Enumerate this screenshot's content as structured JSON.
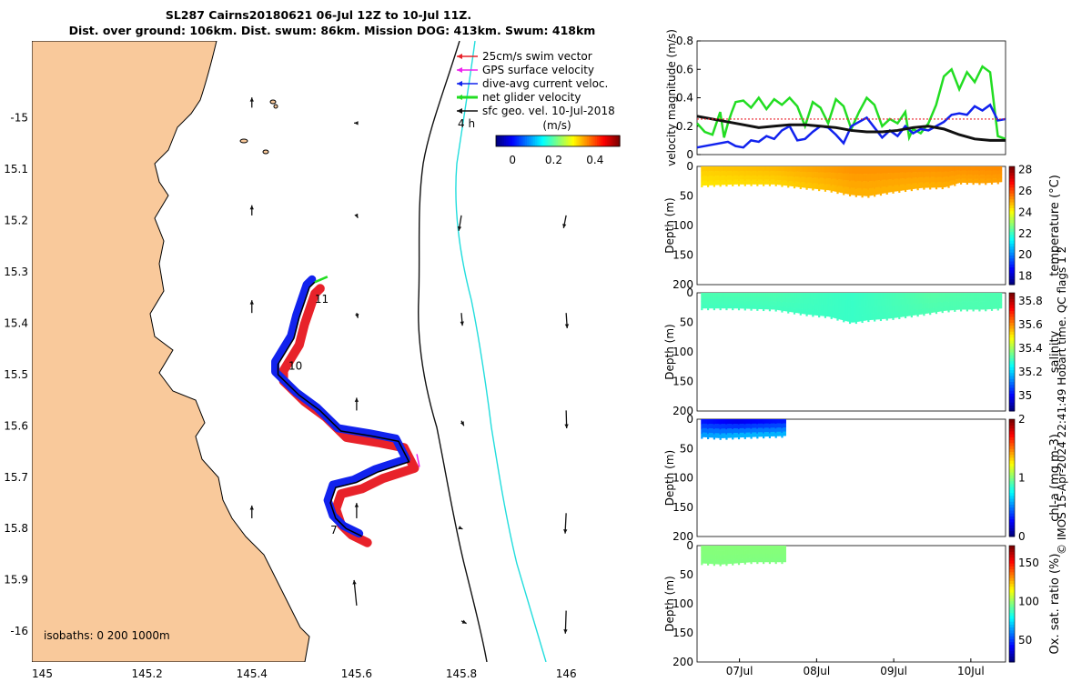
{
  "header": {
    "line1": "SL287 Cairns20180621 06-Jul 12Z to 10-Jul 11Z.",
    "line2": "Dist. over ground: 106km. Dist. swum: 86km. Mission DOG: 413km. Swum: 418km"
  },
  "credit": "© IMOS 15-Apr-2024 22:41:49 Hobart time. QC flags 1  2",
  "colors": {
    "land": "#f9c99b",
    "swim_vector": "#e8222a",
    "gps_velocity": "#ee22ee",
    "dive_current": "#1122ee",
    "net_velocity": "#22dd22",
    "sfc_geo": "#111111",
    "isobath_200": "#111111",
    "isobath_1000": "#22dddd"
  },
  "chart_data": [
    {
      "type": "map",
      "name": "glider-track-map",
      "xlabel_ticks": [
        "145",
        "145.2",
        "145.4",
        "145.6",
        "145.8",
        "146"
      ],
      "x_tick_values": [
        145,
        145.2,
        145.4,
        145.6,
        145.8,
        146
      ],
      "y_tick_labels": [
        "-15",
        "15.1",
        "15.2",
        "15.3",
        "15.4",
        "15.5",
        "15.6",
        "15.7",
        "15.8",
        "15.9",
        "-16"
      ],
      "y_tick_values": [
        -15,
        -15.1,
        -15.2,
        -15.3,
        -15.4,
        -15.5,
        -15.6,
        -15.7,
        -15.8,
        -15.9,
        -16
      ],
      "xlim": [
        144.98,
        146.17
      ],
      "ylim": [
        -16.06,
        -14.85
      ],
      "legend": [
        {
          "label": "25cm/s swim vector",
          "color_key": "swim_vector"
        },
        {
          "label": "GPS surface velocity",
          "color_key": "gps_velocity"
        },
        {
          "label": "dive-avg current veloc.",
          "color_key": "dive_current"
        },
        {
          "label": "net glider velocity",
          "color_key": "net_velocity"
        },
        {
          "label": "sfc geo. vel. 10-Jul-2018",
          "color_key": "sfc_geo"
        }
      ],
      "legend_note": "4 h",
      "colorbar": {
        "label": "(m/s)",
        "ticks": [
          "0",
          "0.2",
          "0.4"
        ],
        "tick_values": [
          0,
          0.2,
          0.4
        ],
        "range": [
          -0.08,
          0.52
        ]
      },
      "isobaths_label": "isobaths: 0   200  1000m",
      "day_labels": [
        {
          "text": "11",
          "lon": 145.52,
          "lat": -15.36
        },
        {
          "text": "10",
          "lon": 145.47,
          "lat": -15.49
        },
        {
          "text": "7",
          "lon": 145.55,
          "lat": -15.81
        }
      ],
      "track": [
        [
          145.61,
          -15.815
        ],
        [
          145.58,
          -15.8
        ],
        [
          145.56,
          -15.78
        ],
        [
          145.55,
          -15.75
        ],
        [
          145.56,
          -15.72
        ],
        [
          145.6,
          -15.71
        ],
        [
          145.64,
          -15.69
        ],
        [
          145.67,
          -15.68
        ],
        [
          145.7,
          -15.67
        ],
        [
          145.68,
          -15.63
        ],
        [
          145.63,
          -15.62
        ],
        [
          145.57,
          -15.61
        ],
        [
          145.53,
          -15.57
        ],
        [
          145.49,
          -15.54
        ],
        [
          145.45,
          -15.5
        ],
        [
          145.45,
          -15.48
        ],
        [
          145.48,
          -15.43
        ],
        [
          145.49,
          -15.39
        ],
        [
          145.5,
          -15.36
        ],
        [
          145.51,
          -15.33
        ],
        [
          145.52,
          -15.32
        ]
      ],
      "geo_vectors": [
        {
          "lon": 145.4,
          "lat": -14.98,
          "u": 0,
          "v": 0.04
        },
        {
          "lon": 145.6,
          "lat": -15.01,
          "u": -0.01,
          "v": 0
        },
        {
          "lon": 145.4,
          "lat": -15.19,
          "u": 0,
          "v": 0.04
        },
        {
          "lon": 145.6,
          "lat": -15.19,
          "u": 0.005,
          "v": -0.01
        },
        {
          "lon": 145.8,
          "lat": -15.19,
          "u": -0.01,
          "v": -0.06
        },
        {
          "lon": 146,
          "lat": -15.19,
          "u": -0.01,
          "v": -0.05
        },
        {
          "lon": 145.4,
          "lat": -15.38,
          "u": 0,
          "v": 0.05
        },
        {
          "lon": 145.6,
          "lat": -15.38,
          "u": 0.005,
          "v": -0.02
        },
        {
          "lon": 145.8,
          "lat": -15.38,
          "u": 0.004,
          "v": -0.05
        },
        {
          "lon": 146,
          "lat": -15.38,
          "u": 0.004,
          "v": -0.06
        },
        {
          "lon": 145.6,
          "lat": -15.57,
          "u": 0,
          "v": 0.05
        },
        {
          "lon": 145.8,
          "lat": -15.59,
          "u": 0.01,
          "v": -0.02
        },
        {
          "lon": 146,
          "lat": -15.57,
          "u": 0.002,
          "v": -0.07
        },
        {
          "lon": 145.4,
          "lat": -15.78,
          "u": 0,
          "v": 0.05
        },
        {
          "lon": 145.6,
          "lat": -15.78,
          "u": 0,
          "v": 0.06
        },
        {
          "lon": 145.8,
          "lat": -15.8,
          "u": 0.005,
          "v": -0.002
        },
        {
          "lon": 146,
          "lat": -15.77,
          "u": -0.004,
          "v": -0.08
        },
        {
          "lon": 145.6,
          "lat": -15.95,
          "u": -0.01,
          "v": 0.1
        },
        {
          "lon": 145.8,
          "lat": -15.98,
          "u": 0.02,
          "v": -0.01
        },
        {
          "lon": 146,
          "lat": -15.96,
          "u": -0.003,
          "v": -0.09
        }
      ]
    },
    {
      "type": "line",
      "name": "velocity-magnitude",
      "ylabel": "velocity magnitude (m/s)",
      "ylim": [
        0,
        0.8
      ],
      "yticks": [
        "0",
        "0.2",
        "0.4",
        "0.6",
        "0.8"
      ],
      "ytick_values": [
        0,
        0.2,
        0.4,
        0.6,
        0.8
      ],
      "xlim": [
        0,
        4
      ],
      "series": [
        {
          "name": "net glider velocity",
          "color_key": "net_velocity",
          "x": [
            0,
            0.1,
            0.2,
            0.3,
            0.35,
            0.4,
            0.45,
            0.5,
            0.6,
            0.7,
            0.8,
            0.9,
            1.0,
            1.1,
            1.2,
            1.3,
            1.4,
            1.5,
            1.6,
            1.7,
            1.8,
            1.9,
            2.0,
            2.1,
            2.2,
            2.3,
            2.4,
            2.5,
            2.6,
            2.7,
            2.75,
            2.8,
            2.9,
            3.0,
            3.1,
            3.2,
            3.3,
            3.4,
            3.5,
            3.6,
            3.7,
            3.8,
            3.9,
            4.0
          ],
          "y": [
            0.22,
            0.16,
            0.14,
            0.3,
            0.12,
            0.22,
            0.3,
            0.37,
            0.38,
            0.33,
            0.4,
            0.32,
            0.39,
            0.35,
            0.4,
            0.34,
            0.2,
            0.37,
            0.33,
            0.22,
            0.39,
            0.34,
            0.18,
            0.3,
            0.4,
            0.35,
            0.2,
            0.25,
            0.22,
            0.3,
            0.12,
            0.18,
            0.15,
            0.22,
            0.35,
            0.55,
            0.6,
            0.46,
            0.58,
            0.51,
            0.62,
            0.58,
            0.13,
            0.11
          ]
        },
        {
          "name": "dive-avg current veloc.",
          "color_key": "dive_current",
          "x": [
            0,
            0.2,
            0.4,
            0.5,
            0.6,
            0.7,
            0.8,
            0.9,
            1.0,
            1.1,
            1.2,
            1.3,
            1.4,
            1.5,
            1.6,
            1.7,
            1.8,
            1.9,
            2.0,
            2.1,
            2.2,
            2.3,
            2.4,
            2.5,
            2.6,
            2.7,
            2.8,
            2.9,
            3.0,
            3.1,
            3.2,
            3.3,
            3.4,
            3.5,
            3.6,
            3.7,
            3.8,
            3.9,
            4.0
          ],
          "y": [
            0.05,
            0.07,
            0.09,
            0.06,
            0.05,
            0.1,
            0.09,
            0.13,
            0.11,
            0.17,
            0.2,
            0.1,
            0.11,
            0.16,
            0.2,
            0.19,
            0.14,
            0.08,
            0.2,
            0.23,
            0.26,
            0.19,
            0.12,
            0.17,
            0.13,
            0.2,
            0.15,
            0.18,
            0.17,
            0.2,
            0.23,
            0.28,
            0.29,
            0.28,
            0.34,
            0.31,
            0.35,
            0.24,
            0.25
          ]
        },
        {
          "name": "sfc geo. vel.",
          "color_key": "sfc_geo",
          "x": [
            0,
            0.2,
            0.4,
            0.6,
            0.8,
            1.0,
            1.2,
            1.4,
            1.6,
            1.8,
            2.0,
            2.2,
            2.4,
            2.6,
            2.8,
            3.0,
            3.2,
            3.4,
            3.6,
            3.8,
            4.0
          ],
          "y": [
            0.27,
            0.25,
            0.23,
            0.21,
            0.19,
            0.2,
            0.21,
            0.21,
            0.2,
            0.19,
            0.17,
            0.16,
            0.16,
            0.17,
            0.19,
            0.2,
            0.18,
            0.14,
            0.11,
            0.1,
            0.1
          ]
        },
        {
          "name": "25cm/s swim vector",
          "color_key": "swim_vector",
          "x": [
            0,
            4.0
          ],
          "y": [
            0.25,
            0.25
          ]
        }
      ]
    },
    {
      "type": "heatmap",
      "name": "temperature-section",
      "clabel": "temperature (°C)",
      "clim": [
        17.2,
        28.3
      ],
      "cticks": [
        "18",
        "20",
        "22",
        "24",
        "26",
        "28"
      ],
      "ctick_values": [
        18,
        20,
        22,
        24,
        26,
        28
      ],
      "depth_range": [
        0,
        200
      ],
      "yticks": [
        "0",
        "50",
        "100",
        "150",
        "200"
      ],
      "ylabel": "Depth (m)",
      "time_range": [
        0.05,
        3.95
      ],
      "bottom_depth": [
        [
          0.05,
          32
        ],
        [
          0.5,
          30
        ],
        [
          1,
          30
        ],
        [
          1.4,
          36
        ],
        [
          1.7,
          40
        ],
        [
          2.0,
          48
        ],
        [
          2.2,
          50
        ],
        [
          2.5,
          43
        ],
        [
          2.9,
          36
        ],
        [
          3.2,
          35
        ],
        [
          3.4,
          27
        ],
        [
          3.7,
          28
        ],
        [
          3.95,
          26
        ]
      ],
      "surface_value": [
        [
          0,
          24.7
        ],
        [
          1,
          24.9
        ],
        [
          2,
          25.3
        ],
        [
          3,
          25.3
        ],
        [
          4,
          25.4
        ]
      ],
      "deep_value": [
        [
          0,
          24.4
        ],
        [
          1,
          24.6
        ],
        [
          2,
          25.0
        ],
        [
          3,
          25.0
        ],
        [
          4,
          25.2
        ]
      ]
    },
    {
      "type": "heatmap",
      "name": "salinity-section",
      "clabel": "salinity",
      "clim": [
        34.87,
        35.87
      ],
      "cticks": [
        "35",
        "35.2",
        "35.4",
        "35.6",
        "35.8"
      ],
      "ctick_values": [
        35,
        35.2,
        35.4,
        35.6,
        35.8
      ],
      "depth_range": [
        0,
        200
      ],
      "yticks": [
        "0",
        "50",
        "100",
        "150",
        "200"
      ],
      "ylabel": "Depth (m)",
      "time_range": [
        0.05,
        3.95
      ],
      "bottom_depth": [
        [
          0.05,
          26
        ],
        [
          0.5,
          26
        ],
        [
          1,
          28
        ],
        [
          1.4,
          36
        ],
        [
          1.7,
          40
        ],
        [
          2.0,
          50
        ],
        [
          2.2,
          46
        ],
        [
          2.5,
          43
        ],
        [
          2.9,
          36
        ],
        [
          3.2,
          30
        ],
        [
          3.4,
          28
        ],
        [
          3.7,
          28
        ],
        [
          3.95,
          26
        ]
      ],
      "surface_value": [
        [
          0,
          35.32
        ],
        [
          1,
          35.32
        ],
        [
          2,
          35.3
        ],
        [
          3,
          35.33
        ],
        [
          4,
          35.32
        ]
      ],
      "deep_value": [
        [
          0,
          35.31
        ],
        [
          1,
          35.31
        ],
        [
          2,
          35.3
        ],
        [
          3,
          35.32
        ],
        [
          4,
          35.32
        ]
      ]
    },
    {
      "type": "heatmap",
      "name": "chl-a-section",
      "clabel": "chl-a (mg m-3)",
      "clim": [
        0,
        2
      ],
      "cticks": [
        "0",
        "1",
        "2"
      ],
      "ctick_values": [
        0,
        1,
        2
      ],
      "depth_range": [
        0,
        200
      ],
      "yticks": [
        "0",
        "50",
        "100",
        "150",
        "200"
      ],
      "ylabel": "Depth (m)",
      "time_range": [
        0.05,
        1.15
      ],
      "bottom_depth": [
        [
          0.05,
          30
        ],
        [
          0.3,
          32
        ],
        [
          0.7,
          30
        ],
        [
          1.15,
          28
        ]
      ],
      "surface_value": [
        [
          0,
          0.3
        ],
        [
          0.5,
          0.22
        ],
        [
          1.15,
          0.3
        ]
      ],
      "deep_value": [
        [
          0,
          0.55
        ],
        [
          0.5,
          0.6
        ],
        [
          1.15,
          0.6
        ]
      ]
    },
    {
      "type": "heatmap",
      "name": "oxygen-section",
      "clabel": "Ox. sat. ratio (%)",
      "clim": [
        22,
        172
      ],
      "cticks": [
        "50",
        "100",
        "150"
      ],
      "ctick_values": [
        50,
        100,
        150
      ],
      "depth_range": [
        0,
        200
      ],
      "yticks": [
        "0",
        "50",
        "100",
        "150",
        "200"
      ],
      "ylabel": "Depth (m)",
      "time_range": [
        0.05,
        1.15
      ],
      "bottom_depth": [
        [
          0.05,
          30
        ],
        [
          0.3,
          32
        ],
        [
          0.7,
          28
        ],
        [
          1.15,
          28
        ]
      ],
      "surface_value": [
        [
          0,
          98
        ],
        [
          1.15,
          98
        ]
      ],
      "deep_value": [
        [
          0,
          97
        ],
        [
          1.15,
          97
        ]
      ],
      "xticks": [
        "07Jul",
        "08Jul",
        "09Jul",
        "10Jul"
      ],
      "xtick_values": [
        0.55,
        1.55,
        2.55,
        3.55
      ]
    }
  ]
}
